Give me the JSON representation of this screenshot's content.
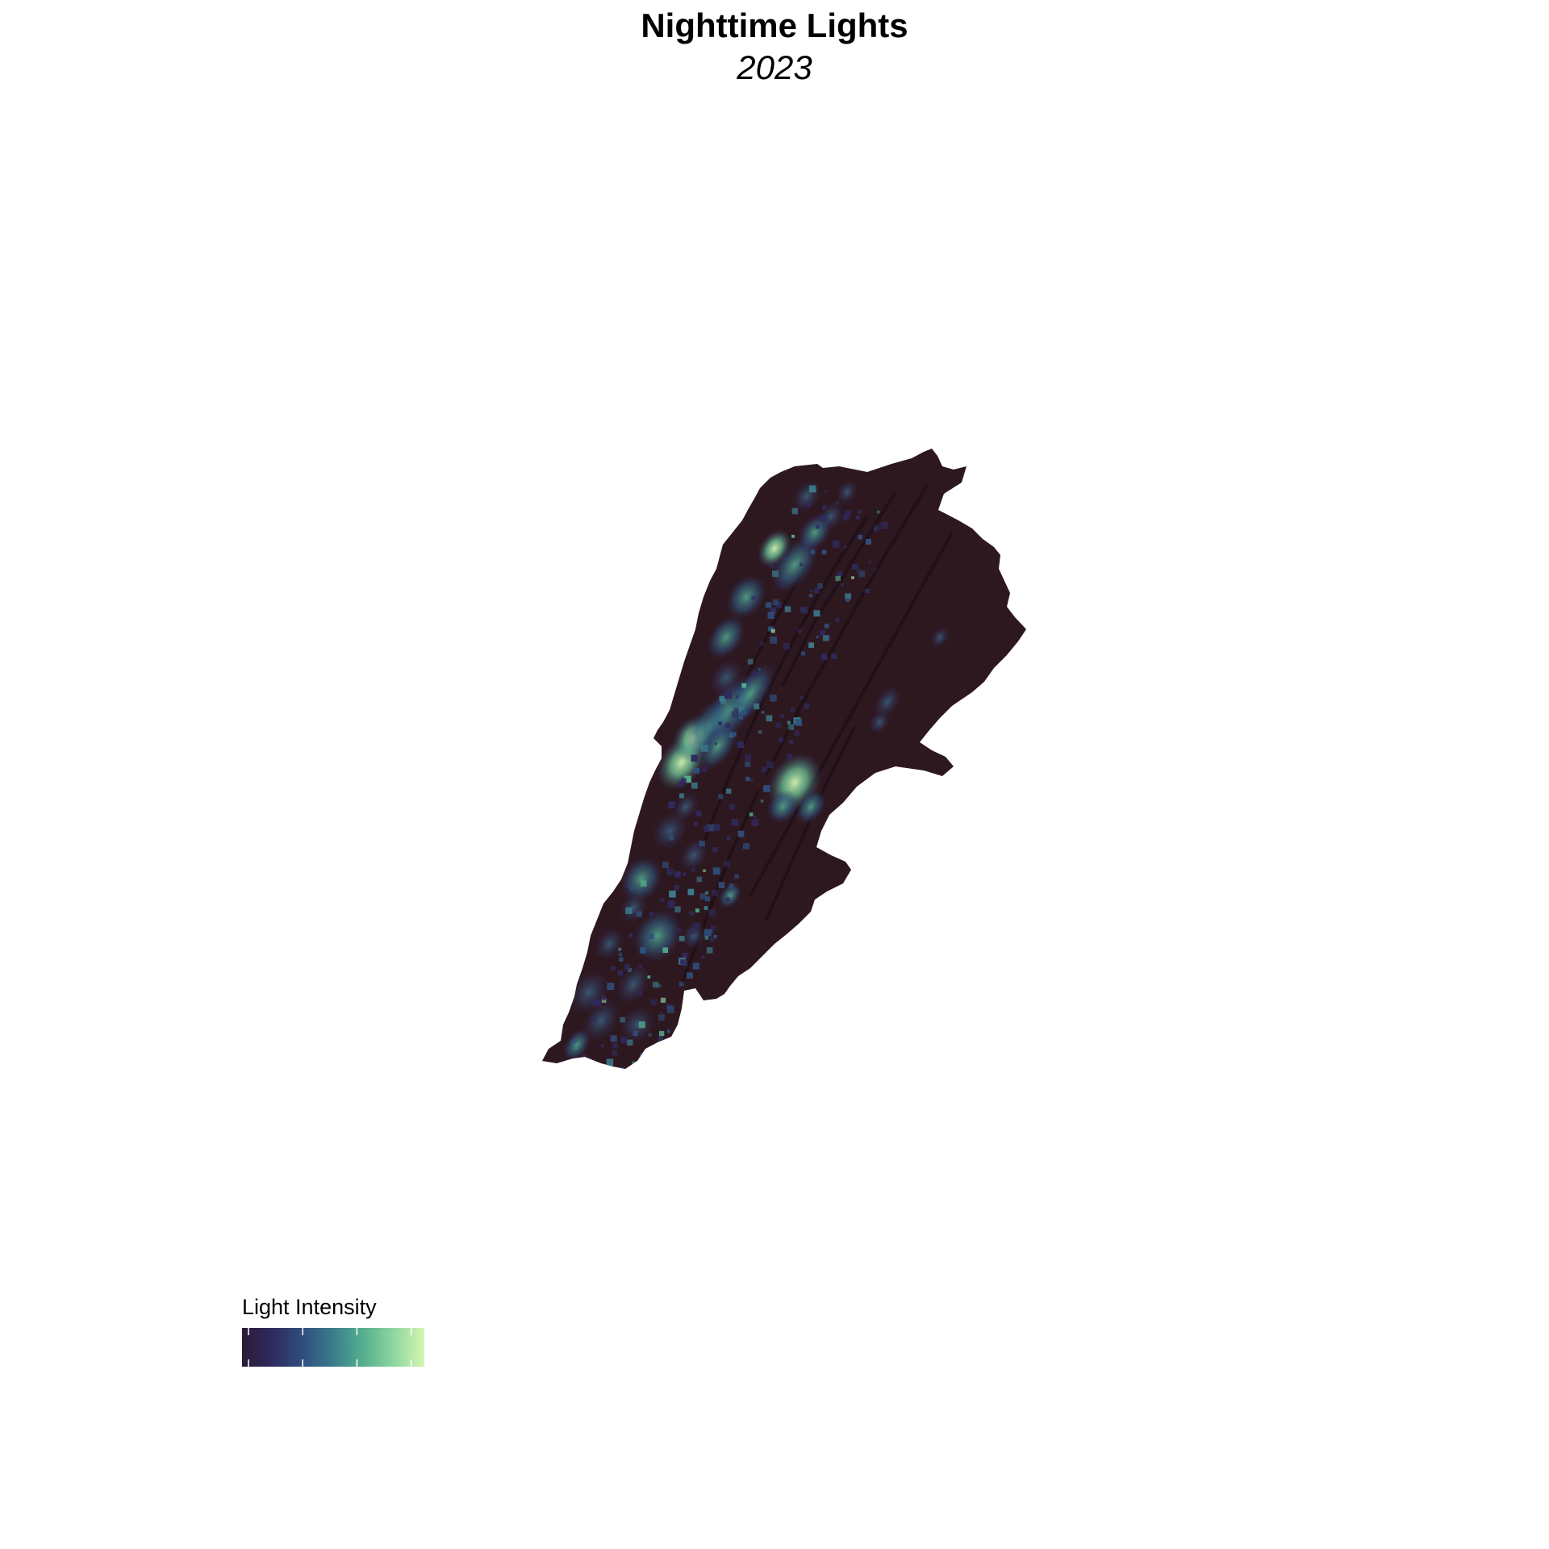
{
  "map": {
    "title": "Nighttime Lights",
    "subtitle": "2023",
    "legend": {
      "title": "Light Intensity",
      "colorscale": [
        "#2a1a35",
        "#2f2a5e",
        "#2f4f7d",
        "#3b7c8c",
        "#55b08e",
        "#8fd7a0",
        "#d4f5b0"
      ],
      "tick_count": 4
    },
    "colors": {
      "land_base": "#2e1820",
      "land_shadow": "#1c0d14",
      "background": "#ffffff"
    }
  }
}
